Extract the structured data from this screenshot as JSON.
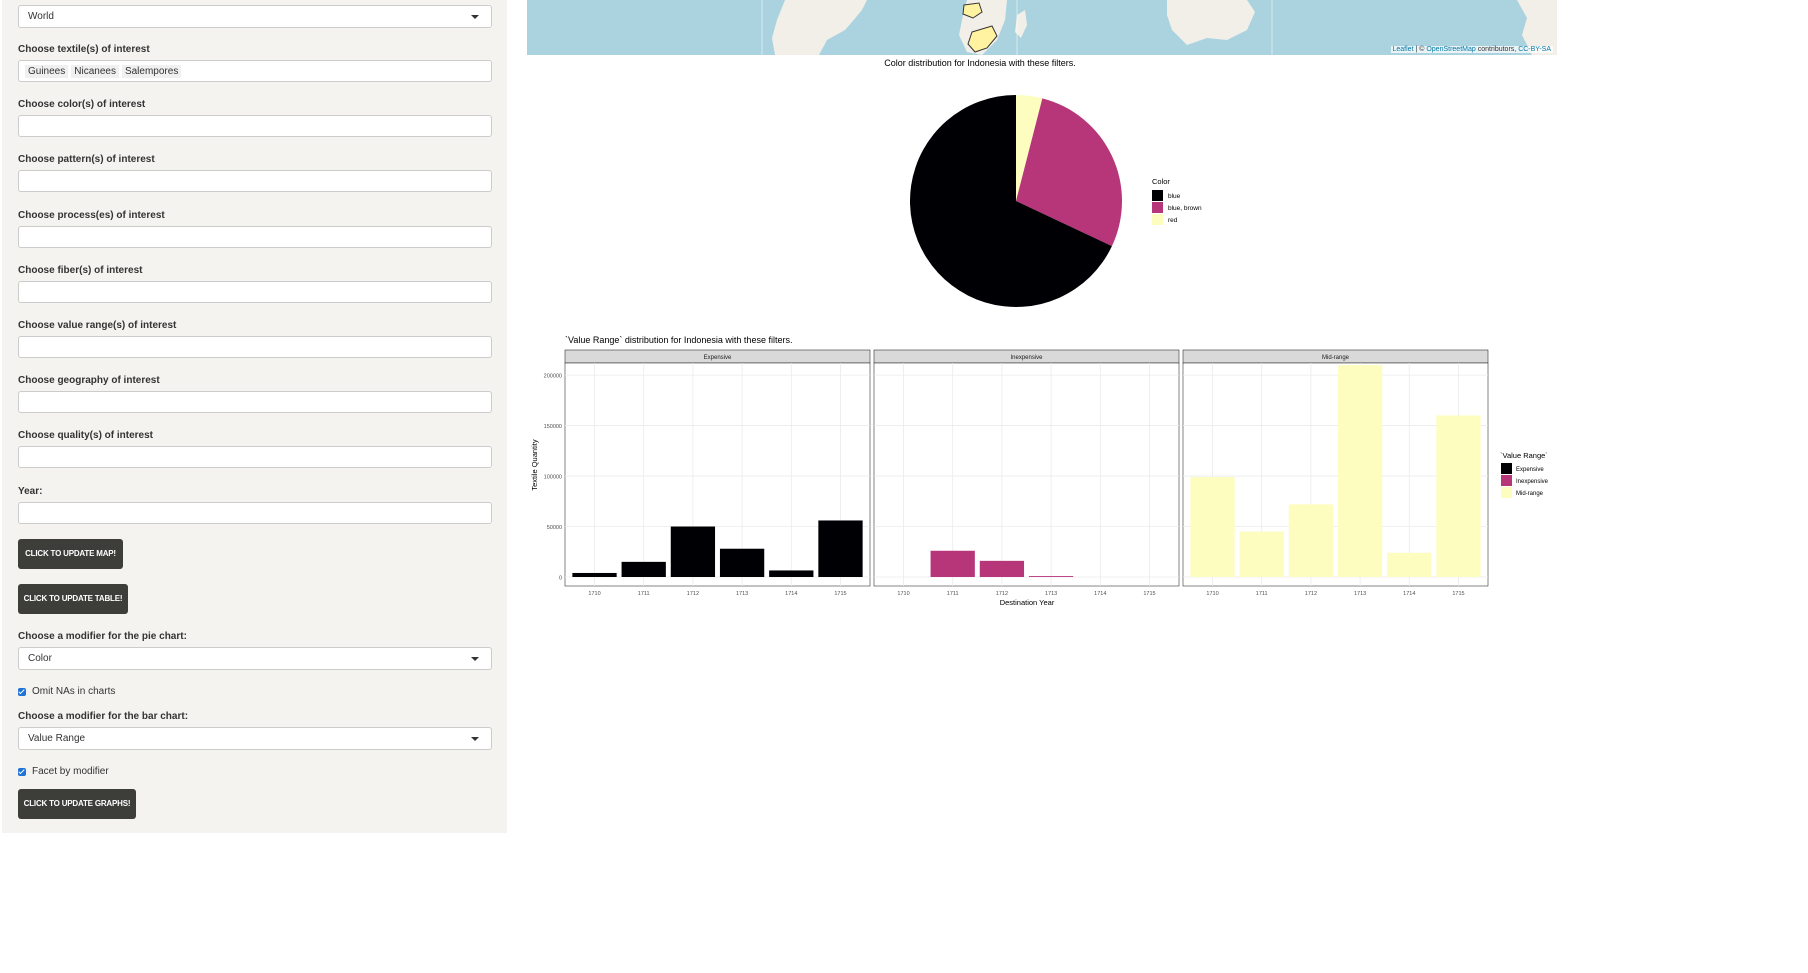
{
  "sidebar": {
    "region_select": "World",
    "textiles_label": "Choose textile(s) of interest",
    "textiles_selected": [
      "Guinees",
      "Nicanees",
      "Salempores"
    ],
    "color_label": "Choose color(s) of interest",
    "pattern_label": "Choose pattern(s) of interest",
    "process_label": "Choose process(es) of interest",
    "fiber_label": "Choose fiber(s) of interest",
    "value_label": "Choose value range(s) of interest",
    "geography_label": "Choose geography of interest",
    "quality_label": "Choose quality(s) of interest",
    "year_label": "Year:",
    "update_map_button": "CLICK TO UPDATE MAP!",
    "update_table_button": "CLICK TO UPDATE TABLE!",
    "pie_modifier_label": "Choose a modifier for the pie chart:",
    "pie_modifier_value": "Color",
    "omit_na_label": "Omit NAs in charts",
    "bar_modifier_label": "Choose a modifier for the bar chart:",
    "bar_modifier_value": "Value Range",
    "facet_label": "Facet by modifier",
    "update_graphs_button": "CLICK TO UPDATE GRAPHS!"
  },
  "map": {
    "attribution_leaflet": "Leaflet",
    "attribution_sep": " | © ",
    "attribution_osm": "OpenStreetMap",
    "attribution_contrib": " contributors, ",
    "attribution_license": "CC-BY-SA",
    "water_color": "#aad3df",
    "land_color": "#f2efe9"
  },
  "chart_data": [
    {
      "type": "pie",
      "title": "Color distribution for Indonesia with these filters.",
      "legend_title": "Color",
      "legend_position": "right",
      "categories": [
        "blue",
        "blue, brown",
        "red"
      ],
      "values": [
        0.68,
        0.28,
        0.04
      ],
      "colors": [
        "#000004",
        "#b63679",
        "#fcfdbf"
      ]
    },
    {
      "type": "bar",
      "title": "`Value Range` distribution for Indonesia with these filters.",
      "xlabel": "Destination Year",
      "ylabel": "Textile Quantity",
      "legend_title": "`Value Range`",
      "legend_position": "right",
      "facets": [
        "Expensive",
        "Inexpensive",
        "Mid-range"
      ],
      "x": [
        "1710",
        "1711",
        "1712",
        "1713",
        "1714",
        "1715"
      ],
      "y_ticks": [
        "0",
        "50000",
        "100000",
        "150000",
        "200000"
      ],
      "ylim": [
        0,
        200000
      ],
      "grid": true,
      "series": [
        {
          "name": "Expensive",
          "color": "#000004",
          "values": [
            4000,
            15000,
            50000,
            28000,
            6500,
            56000
          ]
        },
        {
          "name": "Inexpensive",
          "color": "#b63679",
          "values": [
            null,
            26000,
            16000,
            900,
            null,
            null
          ]
        },
        {
          "name": "Mid-range",
          "color": "#fcfdbf",
          "values": [
            99000,
            45000,
            72000,
            210000,
            24000,
            160000
          ]
        }
      ]
    }
  ]
}
